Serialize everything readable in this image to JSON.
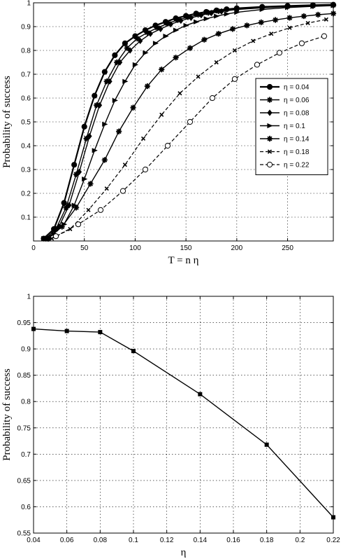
{
  "chart_data": [
    {
      "type": "line",
      "xlabel": "T = n η",
      "ylabel": "Probability of success",
      "xlim": [
        0,
        295
      ],
      "ylim": [
        0,
        1
      ],
      "xticks": [
        0,
        50,
        100,
        150,
        200,
        250
      ],
      "yticks": [
        0.1,
        0.2,
        0.3,
        0.4,
        0.5,
        0.6,
        0.7,
        0.8,
        0.9,
        1
      ],
      "grid": true,
      "legend_position": "center-right",
      "series": [
        {
          "name": "η = 0.04",
          "style": "solid",
          "width": 2.2,
          "marker": "circle-filled",
          "x": [
            10,
            20,
            30,
            40,
            50,
            60,
            70,
            80,
            90,
            100,
            110,
            120,
            130,
            140,
            150,
            160,
            170,
            180,
            190,
            200,
            225,
            250,
            275,
            295
          ],
          "y": [
            0.01,
            0.05,
            0.16,
            0.32,
            0.48,
            0.61,
            0.71,
            0.78,
            0.83,
            0.86,
            0.885,
            0.905,
            0.92,
            0.935,
            0.945,
            0.955,
            0.962,
            0.968,
            0.973,
            0.977,
            0.983,
            0.987,
            0.99,
            0.992
          ]
        },
        {
          "name": "η = 0.06",
          "style": "solid",
          "width": 1.4,
          "marker": "star",
          "x": [
            12,
            22,
            32,
            42,
            52,
            62,
            72,
            82,
            92,
            102,
            112,
            122,
            132,
            142,
            152,
            162,
            172,
            182,
            200,
            225,
            250,
            275,
            295
          ],
          "y": [
            0.01,
            0.05,
            0.14,
            0.28,
            0.43,
            0.57,
            0.67,
            0.75,
            0.81,
            0.85,
            0.875,
            0.895,
            0.913,
            0.928,
            0.94,
            0.95,
            0.958,
            0.965,
            0.973,
            0.98,
            0.985,
            0.988,
            0.99
          ]
        },
        {
          "name": "η = 0.08",
          "style": "solid",
          "width": 1.4,
          "marker": "diamond",
          "x": [
            15,
            25,
            35,
            45,
            55,
            65,
            75,
            85,
            95,
            105,
            115,
            125,
            135,
            145,
            155,
            165,
            175,
            185,
            200,
            225,
            250,
            275,
            295
          ],
          "y": [
            0.01,
            0.06,
            0.15,
            0.29,
            0.44,
            0.57,
            0.67,
            0.75,
            0.8,
            0.84,
            0.87,
            0.89,
            0.91,
            0.925,
            0.937,
            0.948,
            0.957,
            0.964,
            0.972,
            0.979,
            0.984,
            0.987,
            0.99
          ]
        },
        {
          "name": "η = 0.1",
          "style": "solid",
          "width": 1.4,
          "marker": "triangle-right",
          "x": [
            10,
            20,
            30,
            40,
            50,
            60,
            70,
            80,
            90,
            100,
            110,
            120,
            130,
            140,
            150,
            160,
            170,
            180,
            190,
            200,
            225,
            250,
            275,
            295
          ],
          "y": [
            0.01,
            0.03,
            0.07,
            0.15,
            0.26,
            0.38,
            0.49,
            0.59,
            0.67,
            0.74,
            0.79,
            0.83,
            0.86,
            0.885,
            0.905,
            0.92,
            0.933,
            0.944,
            0.953,
            0.96,
            0.972,
            0.98,
            0.985,
            0.988
          ]
        },
        {
          "name": "η = 0.14",
          "style": "solid",
          "width": 1.4,
          "marker": "star",
          "x": [
            14,
            28,
            42,
            56,
            70,
            84,
            98,
            112,
            126,
            140,
            154,
            168,
            182,
            196,
            210,
            224,
            238,
            252,
            266,
            280,
            295
          ],
          "y": [
            0.01,
            0.06,
            0.14,
            0.24,
            0.34,
            0.46,
            0.56,
            0.65,
            0.72,
            0.77,
            0.81,
            0.845,
            0.87,
            0.89,
            0.905,
            0.918,
            0.928,
            0.937,
            0.944,
            0.95,
            0.955
          ]
        },
        {
          "name": "η = 0.18",
          "style": "dashed",
          "width": 1.2,
          "marker": "x",
          "x": [
            18,
            36,
            54,
            72,
            90,
            108,
            126,
            144,
            162,
            180,
            198,
            216,
            234,
            252,
            270,
            288
          ],
          "y": [
            0.01,
            0.05,
            0.13,
            0.22,
            0.32,
            0.43,
            0.53,
            0.62,
            0.69,
            0.75,
            0.8,
            0.84,
            0.87,
            0.895,
            0.915,
            0.93
          ]
        },
        {
          "name": "η = 0.22",
          "style": "dashed",
          "width": 1.2,
          "marker": "circle-open",
          "x": [
            22,
            44,
            66,
            88,
            110,
            132,
            154,
            176,
            198,
            220,
            242,
            264,
            286
          ],
          "y": [
            0.02,
            0.07,
            0.13,
            0.21,
            0.3,
            0.4,
            0.5,
            0.6,
            0.68,
            0.74,
            0.79,
            0.83,
            0.86
          ]
        }
      ]
    },
    {
      "type": "line",
      "xlabel": "η",
      "ylabel": "Probability of success",
      "xlim": [
        0.04,
        0.22
      ],
      "ylim": [
        0.55,
        1
      ],
      "xticks": [
        0.04,
        0.06,
        0.08,
        0.1,
        0.12,
        0.14,
        0.16,
        0.18,
        0.2,
        0.22
      ],
      "yticks": [
        0.55,
        0.6,
        0.65,
        0.7,
        0.75,
        0.8,
        0.85,
        0.9,
        0.95,
        1
      ],
      "grid": true,
      "series": [
        {
          "marker": "square",
          "x": [
            0.04,
            0.06,
            0.08,
            0.1,
            0.14,
            0.18,
            0.22
          ],
          "y": [
            0.938,
            0.934,
            0.932,
            0.896,
            0.814,
            0.718,
            0.58
          ]
        }
      ]
    }
  ]
}
